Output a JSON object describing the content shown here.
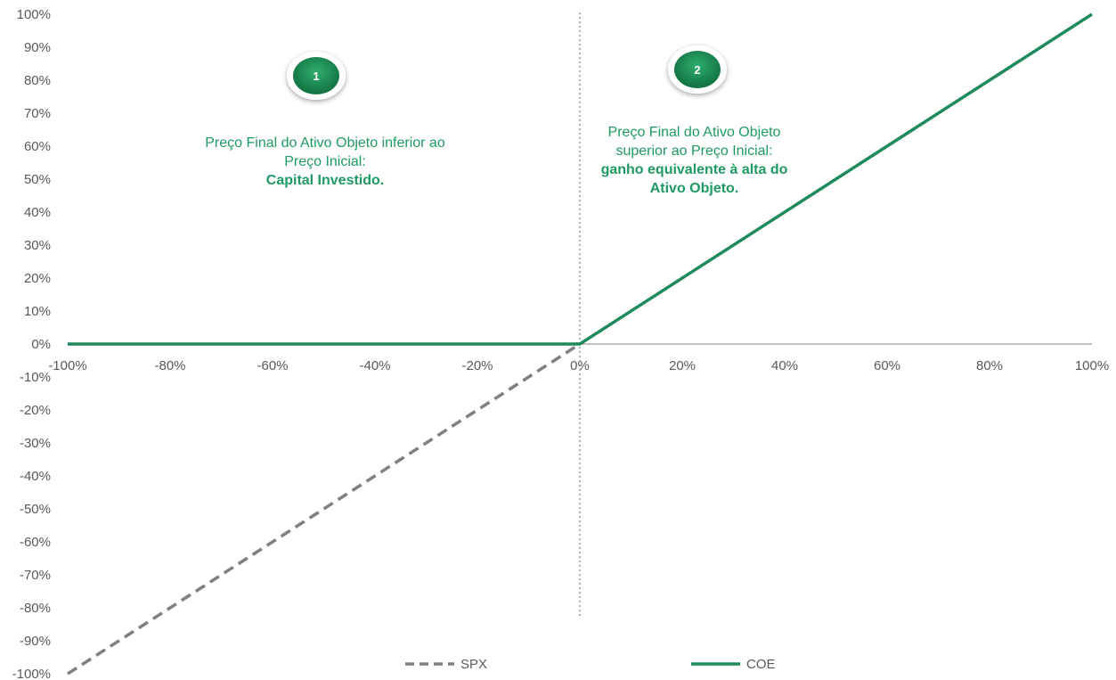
{
  "chart_data": {
    "type": "line",
    "xlim": [
      -100,
      100
    ],
    "ylim": [
      -100,
      100
    ],
    "x_ticks": [
      "-100%",
      "-80%",
      "-60%",
      "-40%",
      "-20%",
      "0%",
      "20%",
      "40%",
      "60%",
      "80%",
      "100%"
    ],
    "y_ticks": [
      "100%",
      "90%",
      "80%",
      "70%",
      "60%",
      "50%",
      "40%",
      "30%",
      "20%",
      "10%",
      "0%",
      "-10%",
      "-20%",
      "-30%",
      "-40%",
      "-50%",
      "-60%",
      "-70%",
      "-80%",
      "-90%",
      "-100%"
    ],
    "grid": false,
    "legend_position": "bottom",
    "series": [
      {
        "name": "SPX",
        "color": "#808080",
        "style": "dashed",
        "x": [
          -100,
          0
        ],
        "y": [
          -100,
          0
        ]
      },
      {
        "name": "COE",
        "color": "#1f8a5b",
        "style": "solid",
        "x": [
          -100,
          0,
          100
        ],
        "y": [
          0,
          0,
          100
        ]
      }
    ],
    "annotations": [
      {
        "badge": "1",
        "text_normal": "Preço Final do Ativo Objeto inferior ao Preço Inicial:",
        "text_bold": "Capital Investido."
      },
      {
        "badge": "2",
        "text_normal": "Preço Final do Ativo Objeto superior ao Preço Inicial:",
        "text_bold": "ganho equivalente à alta do Ativo Objeto."
      }
    ]
  },
  "colors": {
    "accent": "#1f9a63",
    "badge": "#1a8a55",
    "axis": "#808080"
  }
}
